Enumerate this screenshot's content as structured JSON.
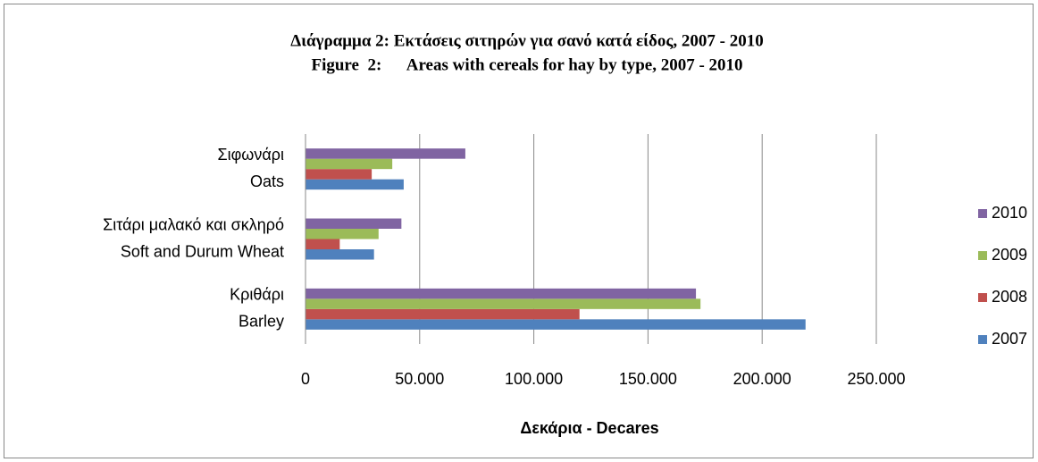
{
  "chart_data": {
    "type": "hbar",
    "title": "Διάγραμμα 2: Εκτάσεις σιτηρών για σανό κατά είδος, 2007 - 2010",
    "subtitle": "Figure  2:      Areas with cereals for hay by type, 2007 - 2010",
    "x_label": "Δεκάρια - Decares",
    "categories": [
      [
        "Κριθάρι",
        "Barley"
      ],
      [
        "Σιτάρι μαλακό και σκληρό",
        "Soft and Durum Wheat"
      ],
      [
        "Σιφωνάρι",
        "Oats"
      ]
    ],
    "series": [
      {
        "name": "2007",
        "color": "#4f81bd",
        "values": [
          219000,
          30000,
          43000
        ]
      },
      {
        "name": "2008",
        "color": "#c0504d",
        "values": [
          120000,
          15000,
          29000
        ]
      },
      {
        "name": "2009",
        "color": "#9bbb59",
        "values": [
          173000,
          32000,
          38000
        ]
      },
      {
        "name": "2010",
        "color": "#8064a2",
        "values": [
          171000,
          42000,
          70000
        ]
      }
    ],
    "xlim": [
      0,
      250000
    ],
    "xticks": [
      0,
      {
        "value": 50000,
        "label": "50.000"
      },
      {
        "value": 100000,
        "label": "100.000"
      },
      {
        "value": 150000,
        "label": "150.000"
      },
      {
        "value": 200000,
        "label": "200.000"
      },
      {
        "value": 250000,
        "label": "250.000"
      }
    ],
    "grid": true,
    "legend": "right"
  }
}
